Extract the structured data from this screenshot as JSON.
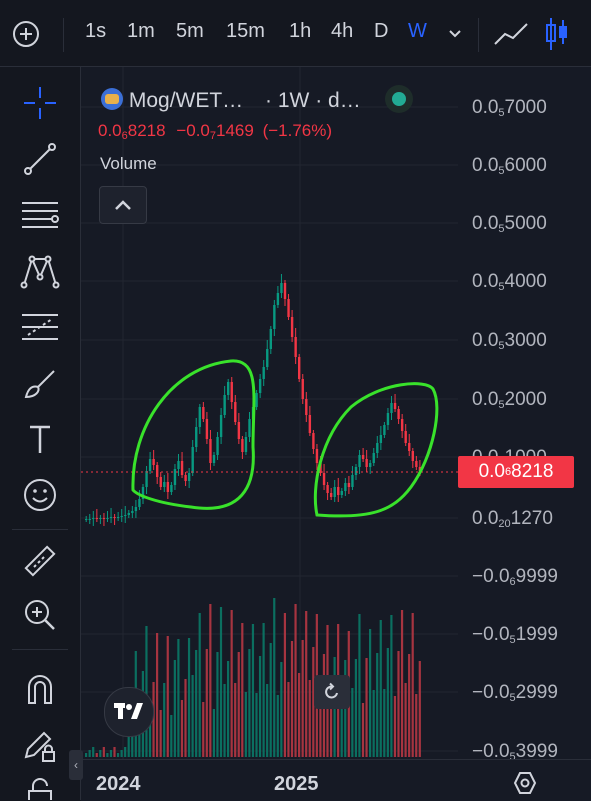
{
  "toolbar": {
    "add_label": "+",
    "intervals": [
      "1s",
      "1m",
      "5m",
      "15m",
      "1h",
      "4h",
      "D",
      "W"
    ],
    "active_interval": "W"
  },
  "legend": {
    "symbol": "Mog/WET…",
    "suffix": "· 1W · d…",
    "price_main": "0.0",
    "price_sub": "6",
    "price_rest": "8218",
    "change_main": "−0.0",
    "change_sub": "7",
    "change_rest": "1469",
    "change_pct": "(−1.76%)",
    "volume_label": "Volume"
  },
  "price_axis": [
    {
      "main": "0.0",
      "sub": "5",
      "rest": "7000"
    },
    {
      "main": "0.0",
      "sub": "5",
      "rest": "6000"
    },
    {
      "main": "0.0",
      "sub": "5",
      "rest": "5000"
    },
    {
      "main": "0.0",
      "sub": "5",
      "rest": "4000"
    },
    {
      "main": "0.0",
      "sub": "5",
      "rest": "3000"
    },
    {
      "main": "0.0",
      "sub": "5",
      "rest": "2000"
    },
    {
      "main": "0.0",
      "sub": "5",
      "rest": "1000"
    },
    {
      "main": "0.0",
      "sub": "20",
      "rest": "1270"
    },
    {
      "main": "−0.0",
      "sub": "6",
      "rest": "9999"
    },
    {
      "main": "−0.0",
      "sub": "5",
      "rest": "1999"
    },
    {
      "main": "−0.0",
      "sub": "5",
      "rest": "2999"
    },
    {
      "main": "−0.0",
      "sub": "5",
      "rest": "3999"
    }
  ],
  "current_price": {
    "main": "0.0",
    "sub": "6",
    "rest": "8218"
  },
  "time_axis": [
    "2024",
    "2025"
  ],
  "colors": {
    "up": "#089981",
    "down": "#f23645",
    "annotation": "#39e22b",
    "accent": "#2962ff"
  }
}
